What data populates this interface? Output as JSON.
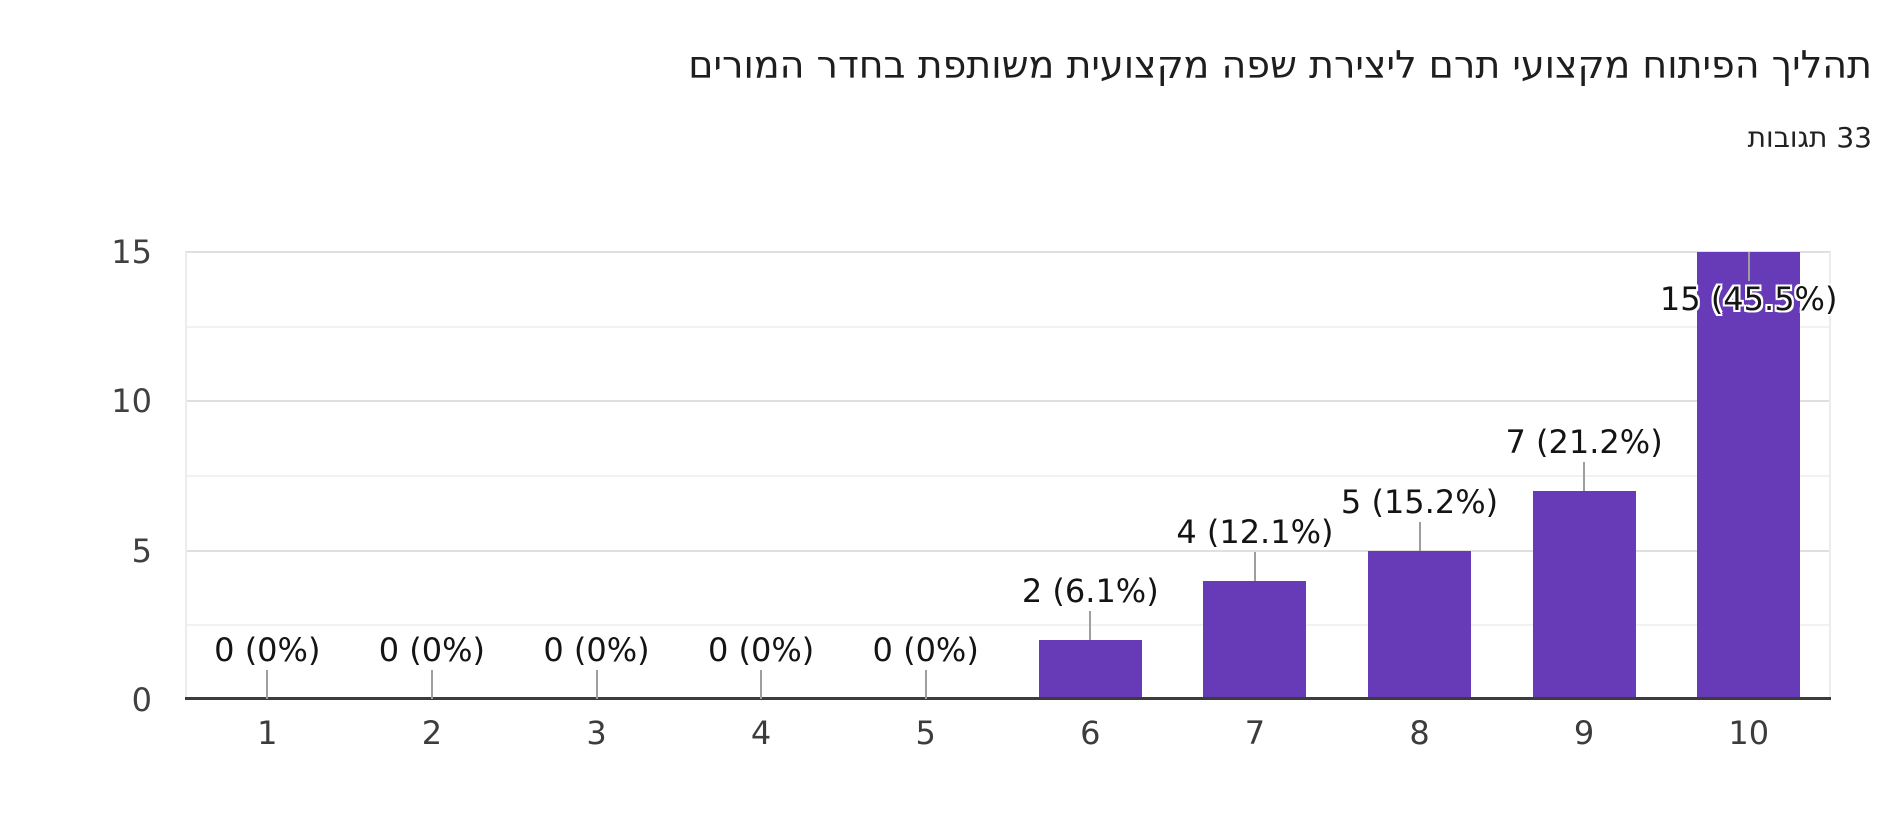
{
  "header": {
    "title": "תהליך הפיתוח מקצועי תרם ליצירת שפה מקצועית משותפת בחדר המורים",
    "responses_label": "33 תגובות"
  },
  "colors": {
    "bar": "#673ab7",
    "background": "#ffffff",
    "axis_line": "#3c3c3c",
    "gridline_major": "#e0e0e0",
    "gridline_minor": "#f2f2f2",
    "boundary_line": "#ececec",
    "axis_label": "#404040",
    "data_label": "#141414",
    "data_label_halo": "#ffffff",
    "leader_line": "#9e9e9e",
    "title_text": "#1e1e1e"
  },
  "chart_data": {
    "type": "bar",
    "title": "תהליך הפיתוח מקצועי תרם ליצירת שפה מקצועית משותפת בחדר המורים",
    "subtitle": "33 תגובות",
    "total_responses": 33,
    "categories": [
      "1",
      "2",
      "3",
      "4",
      "5",
      "6",
      "7",
      "8",
      "9",
      "10"
    ],
    "values": [
      0,
      0,
      0,
      0,
      0,
      2,
      4,
      5,
      7,
      15
    ],
    "value_labels": [
      "0 (0%)",
      "0 (0%)",
      "0 (0%)",
      "0 (0%)",
      "0 (0%)",
      "2 (6.1%)",
      "4 (12.1%)",
      "5 (15.2%)",
      "7 (21.2%)",
      "15 (45.5%)"
    ],
    "xlabel": "",
    "ylabel": "",
    "ylim": [
      0,
      15
    ],
    "yticks": [
      0,
      5,
      10,
      15
    ],
    "minor_gridlines": [
      2.5,
      7.5,
      12.5
    ],
    "grid": true,
    "legend": "none",
    "bar_color": "#673ab7"
  }
}
